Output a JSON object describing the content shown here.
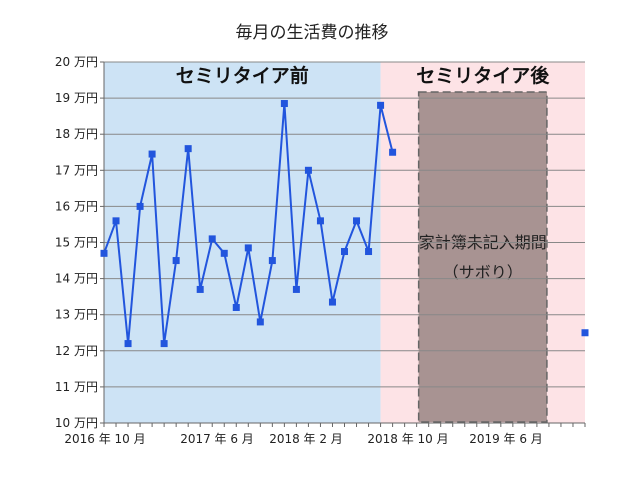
{
  "chart_data": {
    "type": "line",
    "title": "毎月の生活費の推移",
    "ylim": [
      10,
      20
    ],
    "y_ticks": [
      "10 万円",
      "11 万円",
      "12 万円",
      "13 万円",
      "14 万円",
      "15 万円",
      "16 万円",
      "17 万円",
      "18 万円",
      "19 万円",
      "20 万円"
    ],
    "x_tick_labels": [
      "2016 年 10 月",
      "2017 年 6 月",
      "2018 年 2 月",
      "2018 年 10 月",
      "2019 年 6 月"
    ],
    "x_range": [
      "2016-08",
      "2019-12"
    ],
    "x": [
      "2016-08",
      "2016-09",
      "2016-10",
      "2016-11",
      "2016-12",
      "2017-01",
      "2017-02",
      "2017-03",
      "2017-04",
      "2017-05",
      "2017-06",
      "2017-07",
      "2017-08",
      "2017-09",
      "2017-10",
      "2017-11",
      "2017-12",
      "2018-01",
      "2018-02",
      "2018-03",
      "2018-04",
      "2018-05",
      "2018-06",
      "2018-07",
      "2018-08",
      "2018-09",
      "2018-10",
      "2018-11",
      "2019-12"
    ],
    "series": [
      {
        "values": [
          14.7,
          15.6,
          12.2,
          16.0,
          17.45,
          12.2,
          14.5,
          17.6,
          13.7,
          15.1,
          14.7,
          13.2,
          14.85,
          12.8,
          14.5,
          18.85,
          13.7,
          17.0,
          15.6,
          13.35,
          14.75,
          15.6,
          14.75,
          18.8,
          17.5,
          null,
          null,
          null,
          12.5
        ],
        "color": "#2255dd"
      }
    ],
    "regions": [
      {
        "label": "セミリタイア前",
        "from": "2016-08",
        "to": "2018-07",
        "color": "#cde3f5"
      },
      {
        "label": "セミリタイア後",
        "from": "2018-07",
        "to": "2019-12",
        "color": "#fde3e6"
      }
    ],
    "annotation": {
      "lines": [
        "家計簿未記入期間",
        "（サボり）"
      ],
      "from": "2018-10",
      "to": "2019-09",
      "fill": "#a89392",
      "border": "#666666"
    },
    "grid": "horizontal",
    "grid_color": "#888888"
  }
}
